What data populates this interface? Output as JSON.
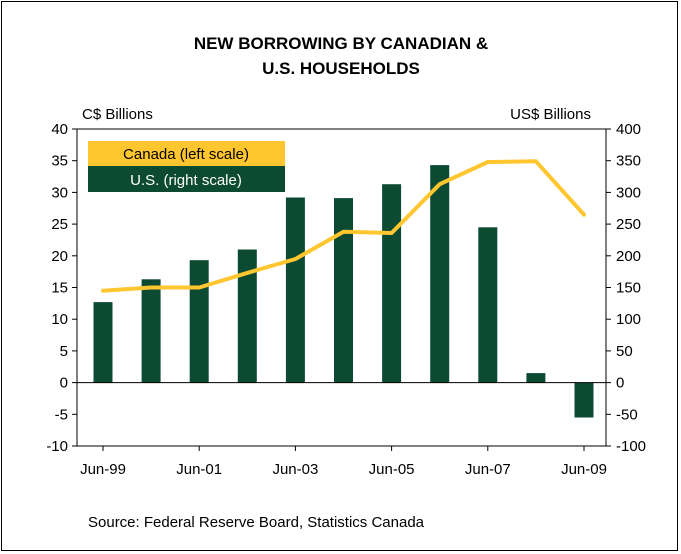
{
  "chart_data": {
    "type": "bar+line",
    "title_lines": [
      "NEW BORROWING BY CANADIAN &",
      "U.S. HOUSEHOLDS"
    ],
    "left_unit": "C$ Billions",
    "right_unit": "US$ Billions",
    "left_ticks": [
      "40",
      "35",
      "30",
      "25",
      "20",
      "15",
      "10",
      "5",
      "0",
      "-5",
      "-10"
    ],
    "right_ticks": [
      "400",
      "350",
      "300",
      "250",
      "200",
      "150",
      "100",
      "50",
      "0",
      "-50",
      "-100"
    ],
    "ylim_left": [
      -10,
      40
    ],
    "ylim_right": [
      -100,
      400
    ],
    "x_labels": [
      "Jun-99",
      "Jun-01",
      "Jun-03",
      "Jun-05",
      "Jun-07",
      "Jun-09"
    ],
    "x_points": [
      "Jun-99",
      "Jun-00",
      "Jun-01",
      "Jun-02",
      "Jun-03",
      "Jun-04",
      "Jun-05",
      "Jun-06",
      "Jun-07",
      "Jun-08",
      "Jun-09"
    ],
    "series": [
      {
        "name": "U.S. (right scale)",
        "kind": "bar",
        "axis": "right",
        "color": "#0d4a32",
        "values": [
          127,
          163,
          193,
          210,
          292,
          291,
          313,
          343,
          245,
          15,
          -55
        ]
      },
      {
        "name": "Canada (left scale)",
        "kind": "line",
        "axis": "left",
        "color": "#ffc62f",
        "values": [
          14.5,
          15.0,
          15.0,
          17.3,
          19.5,
          23.8,
          23.6,
          31.3,
          34.8,
          34.9,
          26.5
        ]
      }
    ],
    "legend": [
      "Canada (left scale)",
      "U.S. (right scale)"
    ],
    "legend_position": "top-left",
    "source": "Source: Federal Reserve Board, Statistics Canada",
    "grid": false
  }
}
